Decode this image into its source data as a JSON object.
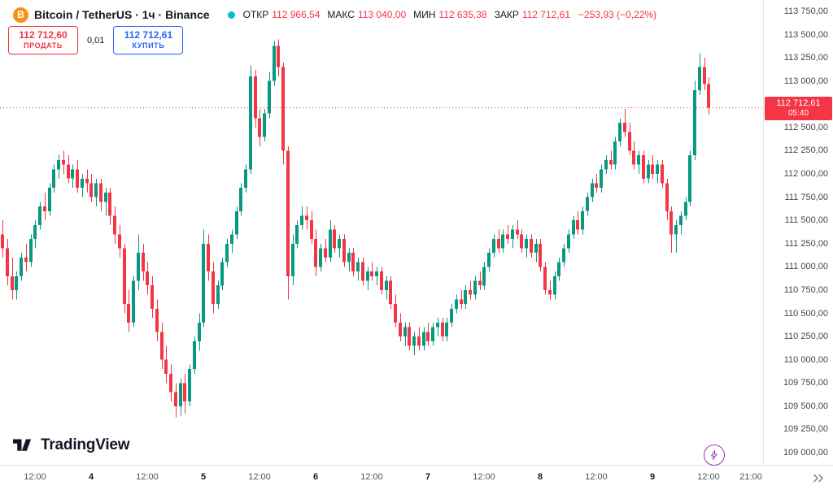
{
  "header": {
    "bitcoin_glyph": "B",
    "symbol_title": "Bitcoin / TetherUS · 1ч · Binance",
    "legend": {
      "open_label": "ОТКР",
      "open": "112 966,54",
      "high_label": "МАКС",
      "high": "113 040,00",
      "low_label": "МИН",
      "low": "112 635,38",
      "close_label": "ЗАКР",
      "close": "112 712,61",
      "change": "−253,93 (−0,22%)"
    }
  },
  "trade_panel": {
    "sell_price": "112 712,60",
    "sell_label": "ПРОДАТЬ",
    "spread": "0,01",
    "buy_price": "112 712,61",
    "buy_label": "КУПИТЬ"
  },
  "price_scale": {
    "ticks": [
      "113 750,00",
      "113 500,00",
      "113 250,00",
      "113 000,00",
      "112 750,00",
      "112 500,00",
      "112 250,00",
      "112 000,00",
      "111 750,00",
      "111 500,00",
      "111 250,00",
      "111 000,00",
      "110 750,00",
      "110 500,00",
      "110 250,00",
      "110 000,00",
      "109 750,00",
      "109 500,00",
      "109 250,00",
      "109 000,00"
    ],
    "last_price_label": "112 712,61",
    "countdown": "05:40"
  },
  "footer": {
    "logo_text": "TradingView"
  },
  "colors": {
    "up": "#089981",
    "down": "#f23645",
    "blue": "#2962ff",
    "text": "#131722",
    "muted": "#50535e",
    "axis_text": "#434651",
    "border": "#e0e3eb",
    "bitcoin_orange": "#f7931a",
    "status_dot": "#00bcd4",
    "boost_purple": "#a437b8",
    "badge_bg": "#f23645"
  },
  "chart_data": {
    "type": "candlestick",
    "title": "Bitcoin / TetherUS · 1ч · Binance",
    "interval": "1ч",
    "exchange": "Binance",
    "ylim": [
      109000,
      113750
    ],
    "y_step": 250,
    "last_price": 112712.61,
    "last_candle": {
      "open": 112966.54,
      "high": 113040.0,
      "low": 112635.38,
      "close": 112712.61,
      "change": -253.93,
      "change_pct": -0.22
    },
    "x_ticks": [
      {
        "label": "12:00",
        "i": 7,
        "major": false
      },
      {
        "label": "4",
        "i": 19,
        "major": true
      },
      {
        "label": "12:00",
        "i": 31,
        "major": false
      },
      {
        "label": "5",
        "i": 43,
        "major": true
      },
      {
        "label": "12:00",
        "i": 55,
        "major": false
      },
      {
        "label": "6",
        "i": 67,
        "major": true
      },
      {
        "label": "12:00",
        "i": 79,
        "major": false
      },
      {
        "label": "7",
        "i": 91,
        "major": true
      },
      {
        "label": "12:00",
        "i": 103,
        "major": false
      },
      {
        "label": "8",
        "i": 115,
        "major": true
      },
      {
        "label": "12:00",
        "i": 127,
        "major": false
      },
      {
        "label": "9",
        "i": 139,
        "major": true
      },
      {
        "label": "12:00",
        "i": 151,
        "major": false
      },
      {
        "label": "21:00",
        "i": 160,
        "major": false
      }
    ],
    "candles": [
      [
        111350,
        111500,
        111100,
        111200
      ],
      [
        111200,
        111300,
        110800,
        110900
      ],
      [
        110900,
        111100,
        110650,
        110750
      ],
      [
        110750,
        110950,
        110650,
        110900
      ],
      [
        110900,
        111150,
        110850,
        111100
      ],
      [
        111100,
        111250,
        110950,
        111050
      ],
      [
        111050,
        111350,
        111000,
        111300
      ],
      [
        111300,
        111500,
        111200,
        111450
      ],
      [
        111450,
        111700,
        111400,
        111650
      ],
      [
        111650,
        111800,
        111500,
        111600
      ],
      [
        111600,
        111900,
        111550,
        111850
      ],
      [
        111850,
        112100,
        111800,
        112050
      ],
      [
        112050,
        112200,
        111950,
        112150
      ],
      [
        112150,
        112250,
        112000,
        112100
      ],
      [
        112100,
        112200,
        111900,
        111950
      ],
      [
        111950,
        112100,
        111850,
        112050
      ],
      [
        112050,
        112150,
        111800,
        111850
      ],
      [
        111850,
        112000,
        111750,
        111950
      ],
      [
        111950,
        112050,
        111800,
        111900
      ],
      [
        111900,
        112000,
        111700,
        111750
      ],
      [
        111750,
        111950,
        111650,
        111900
      ],
      [
        111900,
        111950,
        111600,
        111700
      ],
      [
        111700,
        111850,
        111550,
        111800
      ],
      [
        111800,
        111850,
        111450,
        111550
      ],
      [
        111550,
        111650,
        111250,
        111350
      ],
      [
        111350,
        111450,
        111100,
        111200
      ],
      [
        111200,
        111250,
        110500,
        110600
      ],
      [
        110600,
        110750,
        110300,
        110400
      ],
      [
        110400,
        110900,
        110350,
        110850
      ],
      [
        110850,
        111350,
        110750,
        111150
      ],
      [
        111150,
        111250,
        110850,
        110950
      ],
      [
        110950,
        111050,
        110700,
        110800
      ],
      [
        110800,
        110900,
        110450,
        110550
      ],
      [
        110550,
        110650,
        110200,
        110300
      ],
      [
        110300,
        110400,
        109900,
        110000
      ],
      [
        110000,
        110150,
        109750,
        109850
      ],
      [
        109850,
        109950,
        109550,
        109650
      ],
      [
        109650,
        109750,
        109380,
        109500
      ],
      [
        109500,
        109800,
        109400,
        109750
      ],
      [
        109750,
        109850,
        109420,
        109550
      ],
      [
        109550,
        109950,
        109500,
        109900
      ],
      [
        109900,
        110250,
        109850,
        110200
      ],
      [
        110200,
        110500,
        110100,
        110400
      ],
      [
        110400,
        111400,
        110350,
        111250
      ],
      [
        111250,
        111350,
        110850,
        110950
      ],
      [
        110950,
        111050,
        110500,
        110600
      ],
      [
        110600,
        110850,
        110550,
        110800
      ],
      [
        110800,
        111100,
        110750,
        111050
      ],
      [
        111050,
        111300,
        111000,
        111250
      ],
      [
        111250,
        111400,
        111150,
        111350
      ],
      [
        111350,
        111650,
        111300,
        111600
      ],
      [
        111600,
        111900,
        111550,
        111850
      ],
      [
        111850,
        112100,
        111800,
        112050
      ],
      [
        112050,
        113170,
        112000,
        113050
      ],
      [
        113050,
        113120,
        112500,
        112600
      ],
      [
        112600,
        112700,
        112300,
        112400
      ],
      [
        112400,
        112700,
        112350,
        112650
      ],
      [
        112650,
        113100,
        112600,
        113000
      ],
      [
        113000,
        113430,
        112950,
        113380
      ],
      [
        113380,
        113450,
        113050,
        113150
      ],
      [
        113150,
        113200,
        112100,
        112250
      ],
      [
        112250,
        112300,
        110650,
        110900
      ],
      [
        110900,
        111350,
        110800,
        111250
      ],
      [
        111250,
        111500,
        111200,
        111450
      ],
      [
        111450,
        111650,
        111400,
        111550
      ],
      [
        111550,
        111650,
        111400,
        111500
      ],
      [
        111500,
        111600,
        111250,
        111300
      ],
      [
        111300,
        111400,
        110900,
        111000
      ],
      [
        111000,
        111250,
        110950,
        111200
      ],
      [
        111200,
        111300,
        111050,
        111100
      ],
      [
        111100,
        111500,
        111050,
        111400
      ],
      [
        111400,
        111450,
        111150,
        111200
      ],
      [
        111200,
        111350,
        111100,
        111300
      ],
      [
        111300,
        111350,
        111000,
        111050
      ],
      [
        111050,
        111200,
        110950,
        111150
      ],
      [
        111150,
        111200,
        110900,
        110950
      ],
      [
        110950,
        111100,
        110850,
        111050
      ],
      [
        111050,
        111100,
        110800,
        110850
      ],
      [
        110850,
        111000,
        110750,
        110950
      ],
      [
        110950,
        111050,
        110850,
        110900
      ],
      [
        110900,
        111000,
        110800,
        110950
      ],
      [
        110950,
        111000,
        110700,
        110750
      ],
      [
        110750,
        110900,
        110650,
        110850
      ],
      [
        110850,
        110900,
        110550,
        110600
      ],
      [
        110600,
        110700,
        110350,
        110400
      ],
      [
        110400,
        110500,
        110200,
        110250
      ],
      [
        110250,
        110400,
        110150,
        110350
      ],
      [
        110350,
        110400,
        110100,
        110150
      ],
      [
        110150,
        110300,
        110050,
        110250
      ],
      [
        110250,
        110350,
        110100,
        110150
      ],
      [
        110150,
        110350,
        110100,
        110300
      ],
      [
        110300,
        110400,
        110150,
        110200
      ],
      [
        110200,
        110400,
        110150,
        110350
      ],
      [
        110350,
        110450,
        110250,
        110400
      ],
      [
        110400,
        110450,
        110200,
        110250
      ],
      [
        110250,
        110450,
        110200,
        110400
      ],
      [
        110400,
        110600,
        110350,
        110550
      ],
      [
        110550,
        110700,
        110500,
        110650
      ],
      [
        110650,
        110750,
        110550,
        110600
      ],
      [
        110600,
        110800,
        110550,
        110750
      ],
      [
        110750,
        110850,
        110650,
        110700
      ],
      [
        110700,
        110900,
        110650,
        110850
      ],
      [
        110850,
        110950,
        110750,
        110800
      ],
      [
        110800,
        111050,
        110750,
        111000
      ],
      [
        111000,
        111200,
        110950,
        111150
      ],
      [
        111150,
        111350,
        111100,
        111300
      ],
      [
        111300,
        111400,
        111150,
        111200
      ],
      [
        111200,
        111400,
        111150,
        111350
      ],
      [
        111350,
        111450,
        111250,
        111300
      ],
      [
        111300,
        111450,
        111200,
        111400
      ],
      [
        111400,
        111500,
        111300,
        111350
      ],
      [
        111350,
        111400,
        111150,
        111200
      ],
      [
        111200,
        111350,
        111100,
        111300
      ],
      [
        111300,
        111350,
        111100,
        111150
      ],
      [
        111150,
        111300,
        111050,
        111250
      ],
      [
        111250,
        111300,
        110950,
        111000
      ],
      [
        111000,
        111050,
        110700,
        110750
      ],
      [
        110750,
        110850,
        110640,
        110700
      ],
      [
        110700,
        110950,
        110650,
        110900
      ],
      [
        110900,
        111100,
        110850,
        111050
      ],
      [
        111050,
        111250,
        111000,
        111200
      ],
      [
        111200,
        111400,
        111150,
        111350
      ],
      [
        111350,
        111550,
        111300,
        111500
      ],
      [
        111500,
        111600,
        111350,
        111400
      ],
      [
        111400,
        111650,
        111350,
        111600
      ],
      [
        111600,
        111800,
        111550,
        111750
      ],
      [
        111750,
        111950,
        111700,
        111900
      ],
      [
        111900,
        112000,
        111800,
        111850
      ],
      [
        111850,
        112100,
        111800,
        112050
      ],
      [
        112050,
        112200,
        112000,
        112150
      ],
      [
        112150,
        112250,
        112050,
        112100
      ],
      [
        112100,
        112400,
        112050,
        112350
      ],
      [
        112350,
        112600,
        112300,
        112550
      ],
      [
        112550,
        112700,
        112400,
        112450
      ],
      [
        112450,
        112550,
        112200,
        112250
      ],
      [
        112250,
        112350,
        112050,
        112100
      ],
      [
        112100,
        112250,
        112000,
        112200
      ],
      [
        112200,
        112250,
        111900,
        111950
      ],
      [
        111950,
        112150,
        111900,
        112100
      ],
      [
        112100,
        112200,
        111950,
        112000
      ],
      [
        112000,
        112150,
        111900,
        112100
      ],
      [
        112100,
        112150,
        111850,
        111900
      ],
      [
        111900,
        111950,
        111500,
        111600
      ],
      [
        111600,
        111650,
        111150,
        111350
      ],
      [
        111350,
        111500,
        111150,
        111450
      ],
      [
        111450,
        111600,
        111350,
        111550
      ],
      [
        111550,
        111750,
        111500,
        111700
      ],
      [
        111700,
        112250,
        111650,
        112200
      ],
      [
        112200,
        113000,
        112150,
        112900
      ],
      [
        112900,
        113300,
        112850,
        113150
      ],
      [
        113150,
        113250,
        112900,
        112966.54
      ],
      [
        112966.54,
        113040,
        112635.38,
        112712.61
      ]
    ]
  }
}
